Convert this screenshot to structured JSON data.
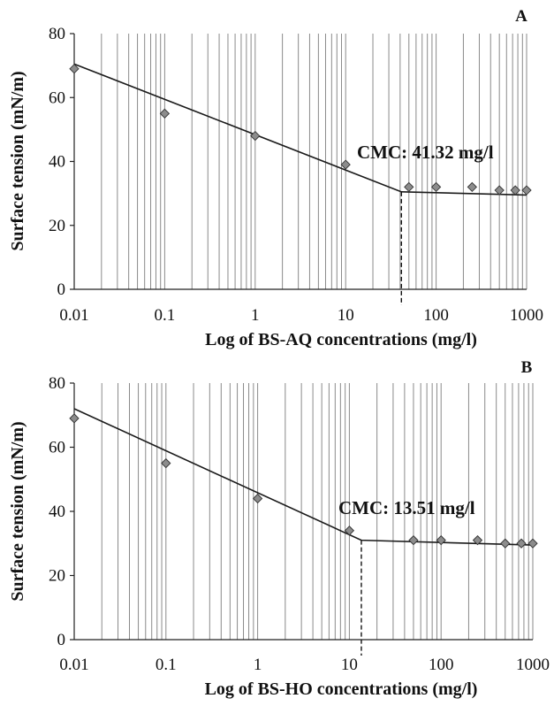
{
  "chart_data": [
    {
      "type": "scatter",
      "panel_label": "A",
      "xlabel": "Log of BS-AQ concentrations (mg/l)",
      "ylabel": "Surface tension (mN/m)",
      "x_scale": "log",
      "xlim": [
        0.01,
        1000
      ],
      "ylim": [
        0,
        80
      ],
      "x_ticks": [
        "0.01",
        "0.1",
        "1",
        "10",
        "100",
        "1000"
      ],
      "y_ticks": [
        "0",
        "20",
        "40",
        "60",
        "80"
      ],
      "grid": "vertical-minor",
      "cmc_label": "CMC: 41.32 mg/l",
      "cmc_x": 41.32,
      "points": {
        "x": [
          0.01,
          0.1,
          1,
          10,
          50,
          100,
          250,
          500,
          750,
          1000
        ],
        "y": [
          69,
          55,
          48,
          39,
          32,
          32,
          32,
          31,
          31,
          31
        ]
      },
      "fit_line": {
        "x": [
          0.01,
          41.32,
          1000
        ],
        "y": [
          70.5,
          30.5,
          29.5
        ]
      }
    },
    {
      "type": "scatter",
      "panel_label": "B",
      "xlabel": "Log of BS-HO concentrations (mg/l)",
      "ylabel": "Surface tension (mN/m)",
      "x_scale": "log",
      "xlim": [
        0.01,
        1000
      ],
      "ylim": [
        0,
        80
      ],
      "x_ticks": [
        "0.01",
        "0.1",
        "1",
        "10",
        "100",
        "1000"
      ],
      "y_ticks": [
        "0",
        "20",
        "40",
        "60",
        "80"
      ],
      "grid": "vertical-minor",
      "cmc_label": "CMC: 13.51 mg/l",
      "cmc_x": 13.51,
      "points": {
        "x": [
          0.01,
          0.1,
          1,
          10,
          50,
          100,
          250,
          500,
          750,
          1000
        ],
        "y": [
          69,
          55,
          44,
          34,
          31,
          31,
          31,
          30,
          30,
          30
        ]
      },
      "fit_line": {
        "x": [
          0.01,
          13.51,
          1000
        ],
        "y": [
          72,
          31,
          29.5
        ]
      }
    }
  ]
}
